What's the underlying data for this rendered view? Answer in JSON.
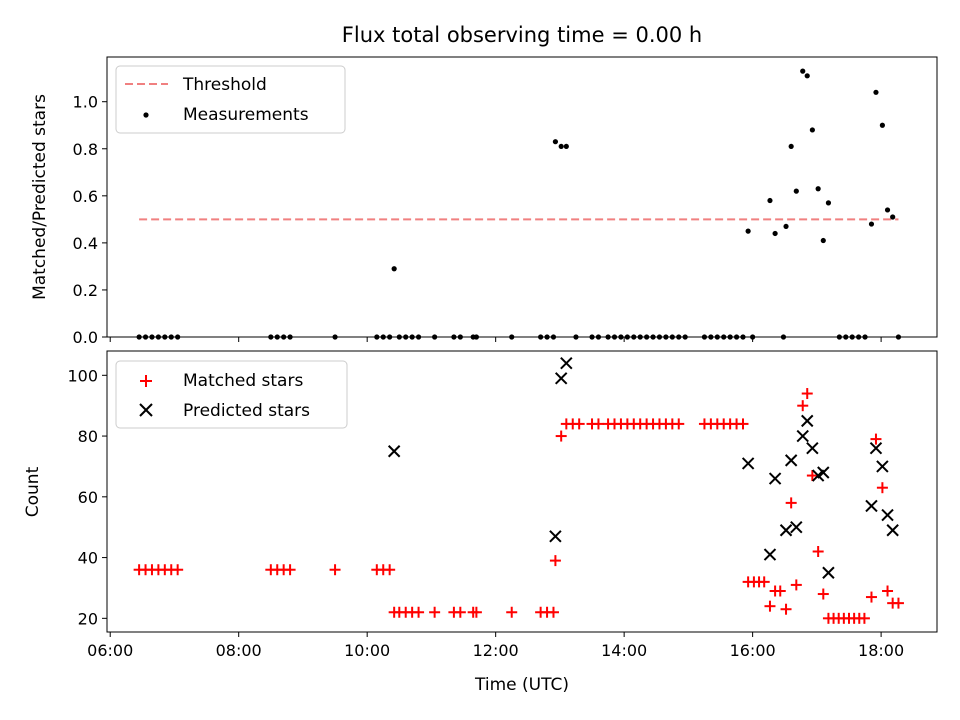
{
  "title": "Flux total observing time = 0.00 h",
  "x_axis": {
    "label": "Time (UTC)",
    "tick_labels": [
      "06:00",
      "08:00",
      "10:00",
      "12:00",
      "14:00",
      "16:00",
      "18:00"
    ]
  },
  "top_axis": {
    "ylabel": "Matched/Predicted stars",
    "tick_labels": [
      "0.0",
      "0.2",
      "0.4",
      "0.6",
      "0.8",
      "1.0"
    ]
  },
  "bottom_axis": {
    "ylabel": "Count",
    "tick_labels": [
      "20",
      "40",
      "60",
      "80",
      "100"
    ]
  },
  "legend_top": {
    "threshold": "Threshold",
    "measurements": "Measurements"
  },
  "legend_bottom": {
    "matched": "Matched stars",
    "predicted": "Predicted stars"
  },
  "colors": {
    "threshold": "#f08080",
    "measurements": "#000000",
    "matched": "#ff0000",
    "predicted": "#000000"
  },
  "chart_data": [
    {
      "type": "scatter",
      "panel": "top",
      "title": "Flux total observing time = 0.00 h",
      "xlabel": "",
      "ylabel": "Matched/Predicted stars",
      "xlim_hours": [
        5.95,
        18.87
      ],
      "ylim": [
        0,
        1.19
      ],
      "x_ticks": [
        6,
        8,
        10,
        12,
        14,
        16,
        18
      ],
      "y_ticks": [
        0,
        0.2,
        0.4,
        0.6,
        0.8,
        1.0
      ],
      "legend_position": "top-left",
      "threshold": {
        "name": "Threshold",
        "y": 0.5,
        "x_range": [
          6.45,
          18.27
        ],
        "style": "dashed"
      },
      "series": [
        {
          "name": "Measurements",
          "marker": "dot",
          "points": [
            [
              6.45,
              0
            ],
            [
              6.55,
              0
            ],
            [
              6.65,
              0
            ],
            [
              6.75,
              0
            ],
            [
              6.85,
              0
            ],
            [
              6.95,
              0
            ],
            [
              7.05,
              0
            ],
            [
              8.5,
              0
            ],
            [
              8.6,
              0
            ],
            [
              8.7,
              0
            ],
            [
              8.8,
              0
            ],
            [
              9.5,
              0
            ],
            [
              10.15,
              0
            ],
            [
              10.25,
              0
            ],
            [
              10.35,
              0
            ],
            [
              10.42,
              0.29
            ],
            [
              10.5,
              0
            ],
            [
              10.6,
              0
            ],
            [
              10.7,
              0
            ],
            [
              10.8,
              0
            ],
            [
              11.05,
              0
            ],
            [
              11.35,
              0
            ],
            [
              11.45,
              0
            ],
            [
              11.65,
              0
            ],
            [
              11.7,
              0
            ],
            [
              12.25,
              0
            ],
            [
              12.7,
              0
            ],
            [
              12.8,
              0
            ],
            [
              12.9,
              0
            ],
            [
              12.93,
              0.83
            ],
            [
              13.02,
              0.81
            ],
            [
              13.1,
              0.81
            ],
            [
              13.25,
              0
            ],
            [
              13.5,
              0
            ],
            [
              13.6,
              0
            ],
            [
              13.75,
              0
            ],
            [
              13.85,
              0
            ],
            [
              13.95,
              0
            ],
            [
              14.05,
              0
            ],
            [
              14.15,
              0
            ],
            [
              14.25,
              0
            ],
            [
              14.35,
              0
            ],
            [
              14.45,
              0
            ],
            [
              14.55,
              0
            ],
            [
              14.65,
              0
            ],
            [
              14.75,
              0
            ],
            [
              14.85,
              0
            ],
            [
              14.95,
              0
            ],
            [
              15.25,
              0
            ],
            [
              15.35,
              0
            ],
            [
              15.45,
              0
            ],
            [
              15.55,
              0
            ],
            [
              15.65,
              0
            ],
            [
              15.75,
              0
            ],
            [
              15.85,
              0
            ],
            [
              15.93,
              0.45
            ],
            [
              16.0,
              0
            ],
            [
              16.27,
              0.58
            ],
            [
              16.35,
              0.44
            ],
            [
              16.48,
              0
            ],
            [
              16.52,
              0.47
            ],
            [
              16.6,
              0.81
            ],
            [
              16.68,
              0.62
            ],
            [
              16.78,
              1.13
            ],
            [
              16.85,
              1.11
            ],
            [
              16.93,
              0.88
            ],
            [
              17.02,
              0.63
            ],
            [
              17.1,
              0.41
            ],
            [
              17.18,
              0.57
            ],
            [
              17.35,
              0
            ],
            [
              17.45,
              0
            ],
            [
              17.55,
              0
            ],
            [
              17.65,
              0
            ],
            [
              17.75,
              0
            ],
            [
              17.85,
              0.48
            ],
            [
              17.92,
              1.04
            ],
            [
              18.02,
              0.9
            ],
            [
              18.1,
              0.54
            ],
            [
              18.18,
              0.51
            ],
            [
              18.27,
              0
            ]
          ]
        }
      ]
    },
    {
      "type": "scatter",
      "panel": "bottom",
      "title": "",
      "xlabel": "Time (UTC)",
      "ylabel": "Count",
      "xlim_hours": [
        5.95,
        18.87
      ],
      "ylim": [
        15.5,
        108
      ],
      "x_ticks": [
        6,
        8,
        10,
        12,
        14,
        16,
        18
      ],
      "y_ticks": [
        20,
        40,
        60,
        80,
        100
      ],
      "legend_position": "top-left",
      "series": [
        {
          "name": "Matched stars",
          "marker": "plus",
          "points": [
            [
              6.45,
              36
            ],
            [
              6.55,
              36
            ],
            [
              6.65,
              36
            ],
            [
              6.75,
              36
            ],
            [
              6.85,
              36
            ],
            [
              6.95,
              36
            ],
            [
              7.05,
              36
            ],
            [
              8.5,
              36
            ],
            [
              8.6,
              36
            ],
            [
              8.7,
              36
            ],
            [
              8.8,
              36
            ],
            [
              9.5,
              36
            ],
            [
              10.15,
              36
            ],
            [
              10.25,
              36
            ],
            [
              10.35,
              36
            ],
            [
              10.42,
              22
            ],
            [
              10.5,
              22
            ],
            [
              10.6,
              22
            ],
            [
              10.7,
              22
            ],
            [
              10.8,
              22
            ],
            [
              11.05,
              22
            ],
            [
              11.35,
              22
            ],
            [
              11.45,
              22
            ],
            [
              11.65,
              22
            ],
            [
              11.7,
              22
            ],
            [
              12.25,
              22
            ],
            [
              12.7,
              22
            ],
            [
              12.8,
              22
            ],
            [
              12.9,
              22
            ],
            [
              12.93,
              39
            ],
            [
              13.02,
              80
            ],
            [
              13.1,
              84
            ],
            [
              13.2,
              84
            ],
            [
              13.3,
              84
            ],
            [
              13.5,
              84
            ],
            [
              13.6,
              84
            ],
            [
              13.75,
              84
            ],
            [
              13.85,
              84
            ],
            [
              13.95,
              84
            ],
            [
              14.05,
              84
            ],
            [
              14.15,
              84
            ],
            [
              14.25,
              84
            ],
            [
              14.35,
              84
            ],
            [
              14.45,
              84
            ],
            [
              14.55,
              84
            ],
            [
              14.65,
              84
            ],
            [
              14.75,
              84
            ],
            [
              14.85,
              84
            ],
            [
              15.25,
              84
            ],
            [
              15.35,
              84
            ],
            [
              15.45,
              84
            ],
            [
              15.55,
              84
            ],
            [
              15.65,
              84
            ],
            [
              15.75,
              84
            ],
            [
              15.85,
              84
            ],
            [
              15.93,
              32
            ],
            [
              16.02,
              32
            ],
            [
              16.1,
              32
            ],
            [
              16.18,
              32
            ],
            [
              16.27,
              24
            ],
            [
              16.35,
              29
            ],
            [
              16.43,
              29
            ],
            [
              16.52,
              23
            ],
            [
              16.6,
              58
            ],
            [
              16.68,
              31
            ],
            [
              16.78,
              90
            ],
            [
              16.85,
              94
            ],
            [
              16.93,
              67
            ],
            [
              17.02,
              42
            ],
            [
              17.1,
              28
            ],
            [
              17.18,
              20
            ],
            [
              17.26,
              20
            ],
            [
              17.34,
              20
            ],
            [
              17.42,
              20
            ],
            [
              17.5,
              20
            ],
            [
              17.58,
              20
            ],
            [
              17.66,
              20
            ],
            [
              17.74,
              20
            ],
            [
              17.85,
              27
            ],
            [
              17.92,
              79
            ],
            [
              18.02,
              63
            ],
            [
              18.1,
              29
            ],
            [
              18.18,
              25
            ],
            [
              18.27,
              25
            ]
          ]
        },
        {
          "name": "Predicted stars",
          "marker": "x",
          "points": [
            [
              10.42,
              75
            ],
            [
              12.93,
              47
            ],
            [
              13.02,
              99
            ],
            [
              13.1,
              104
            ],
            [
              15.93,
              71
            ],
            [
              16.27,
              41
            ],
            [
              16.35,
              66
            ],
            [
              16.52,
              49
            ],
            [
              16.6,
              72
            ],
            [
              16.68,
              50
            ],
            [
              16.78,
              80
            ],
            [
              16.85,
              85
            ],
            [
              16.93,
              76
            ],
            [
              17.02,
              67
            ],
            [
              17.1,
              68
            ],
            [
              17.18,
              35
            ],
            [
              17.85,
              57
            ],
            [
              17.92,
              76
            ],
            [
              18.02,
              70
            ],
            [
              18.1,
              54
            ],
            [
              18.18,
              49
            ]
          ]
        }
      ]
    }
  ]
}
